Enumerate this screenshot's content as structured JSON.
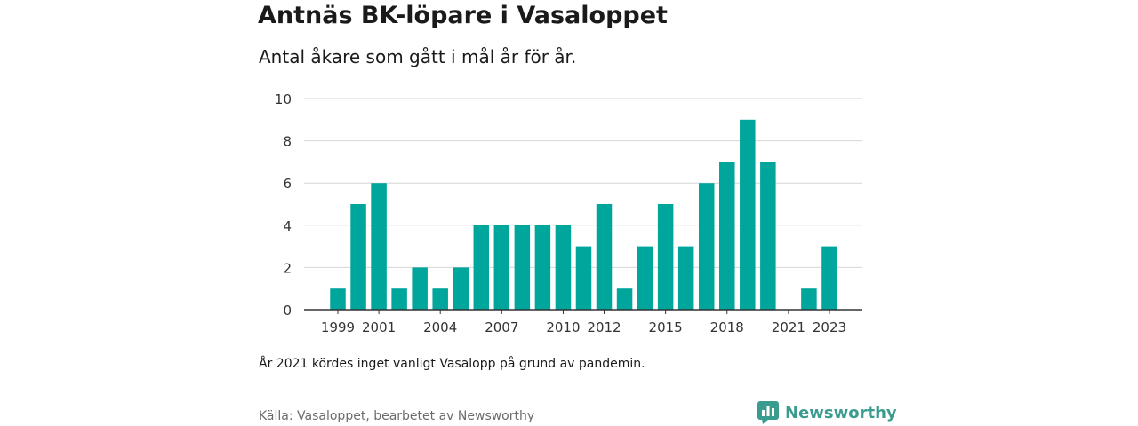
{
  "title": "Antnäs BK-löpare i Vasaloppet",
  "subtitle": "Antal åkare som gått i mål år för år.",
  "note": "År 2021 kördes inget vanligt Vasalopp på grund av pandemin.",
  "source": "Källa: Vasaloppet, bearbetet av Newsworthy",
  "brand": {
    "name": "Newsworthy",
    "icon": "newsworthy-logo-icon",
    "color": "#3a9b8f"
  },
  "chart_data": {
    "type": "bar",
    "categories": [
      "1999",
      "2000",
      "2001",
      "2002",
      "2003",
      "2004",
      "2005",
      "2006",
      "2007",
      "2008",
      "2009",
      "2010",
      "2011",
      "2012",
      "2013",
      "2014",
      "2015",
      "2016",
      "2017",
      "2018",
      "2019",
      "2020",
      "2021",
      "2022",
      "2023"
    ],
    "values": [
      1,
      5,
      6,
      1,
      2,
      1,
      2,
      4,
      4,
      4,
      4,
      4,
      3,
      5,
      1,
      3,
      5,
      3,
      6,
      7,
      9,
      7,
      0,
      1,
      3
    ],
    "x_tick_labels": [
      "1999",
      "2001",
      "2004",
      "2007",
      "2010",
      "2012",
      "2015",
      "2018",
      "2021",
      "2023"
    ],
    "y_ticks": [
      0,
      2,
      4,
      6,
      8,
      10
    ],
    "ylim": [
      0,
      10
    ],
    "grid": true,
    "bar_color": "#00a59b",
    "xlabel": "",
    "ylabel": ""
  }
}
